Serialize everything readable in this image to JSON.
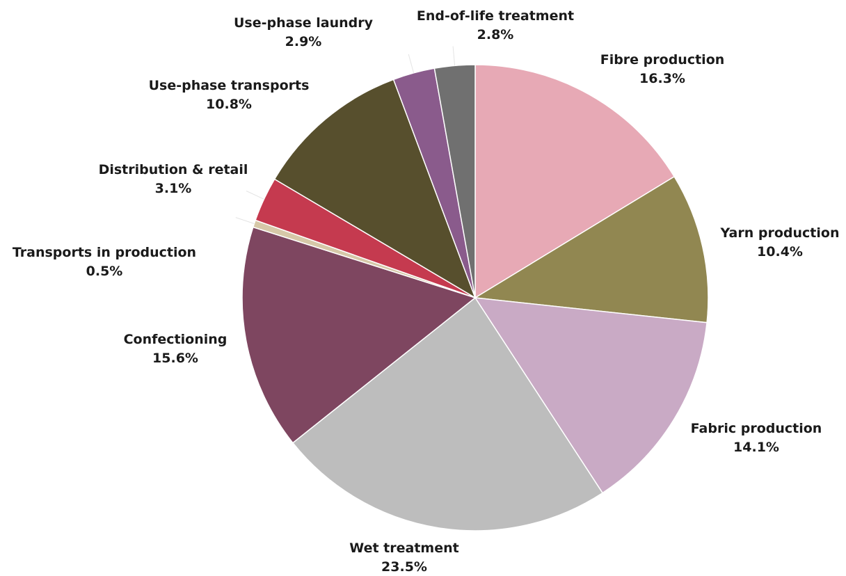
{
  "chart_data": {
    "type": "pie",
    "title": "",
    "start_angle_deg": 0,
    "direction": "clockwise",
    "slices": [
      {
        "label": "Fibre production",
        "value": 16.3,
        "value_label": "16.3%",
        "color": "#e7a9b5"
      },
      {
        "label": "Yarn production",
        "value": 10.4,
        "value_label": "10.4%",
        "color": "#918751"
      },
      {
        "label": "Fabric production",
        "value": 14.1,
        "value_label": "14.1%",
        "color": "#c9aac5"
      },
      {
        "label": "Wet treatment",
        "value": 23.5,
        "value_label": "23.5%",
        "color": "#bdbdbd"
      },
      {
        "label": "Confectioning",
        "value": 15.6,
        "value_label": "15.6%",
        "color": "#7e4660"
      },
      {
        "label": "Transports in production",
        "value": 0.5,
        "value_label": "0.5%",
        "color": "#d6c8a8"
      },
      {
        "label": "Distribution & retail",
        "value": 3.1,
        "value_label": "3.1%",
        "color": "#c53a4f"
      },
      {
        "label": "Use-phase transports",
        "value": 10.8,
        "value_label": "10.8%",
        "color": "#574f2d"
      },
      {
        "label": "Use-phase laundry",
        "value": 2.9,
        "value_label": "2.9%",
        "color": "#8a5b8c"
      },
      {
        "label": "End-of-life treatment",
        "value": 2.8,
        "value_label": "2.8%",
        "color": "#707070"
      }
    ]
  }
}
